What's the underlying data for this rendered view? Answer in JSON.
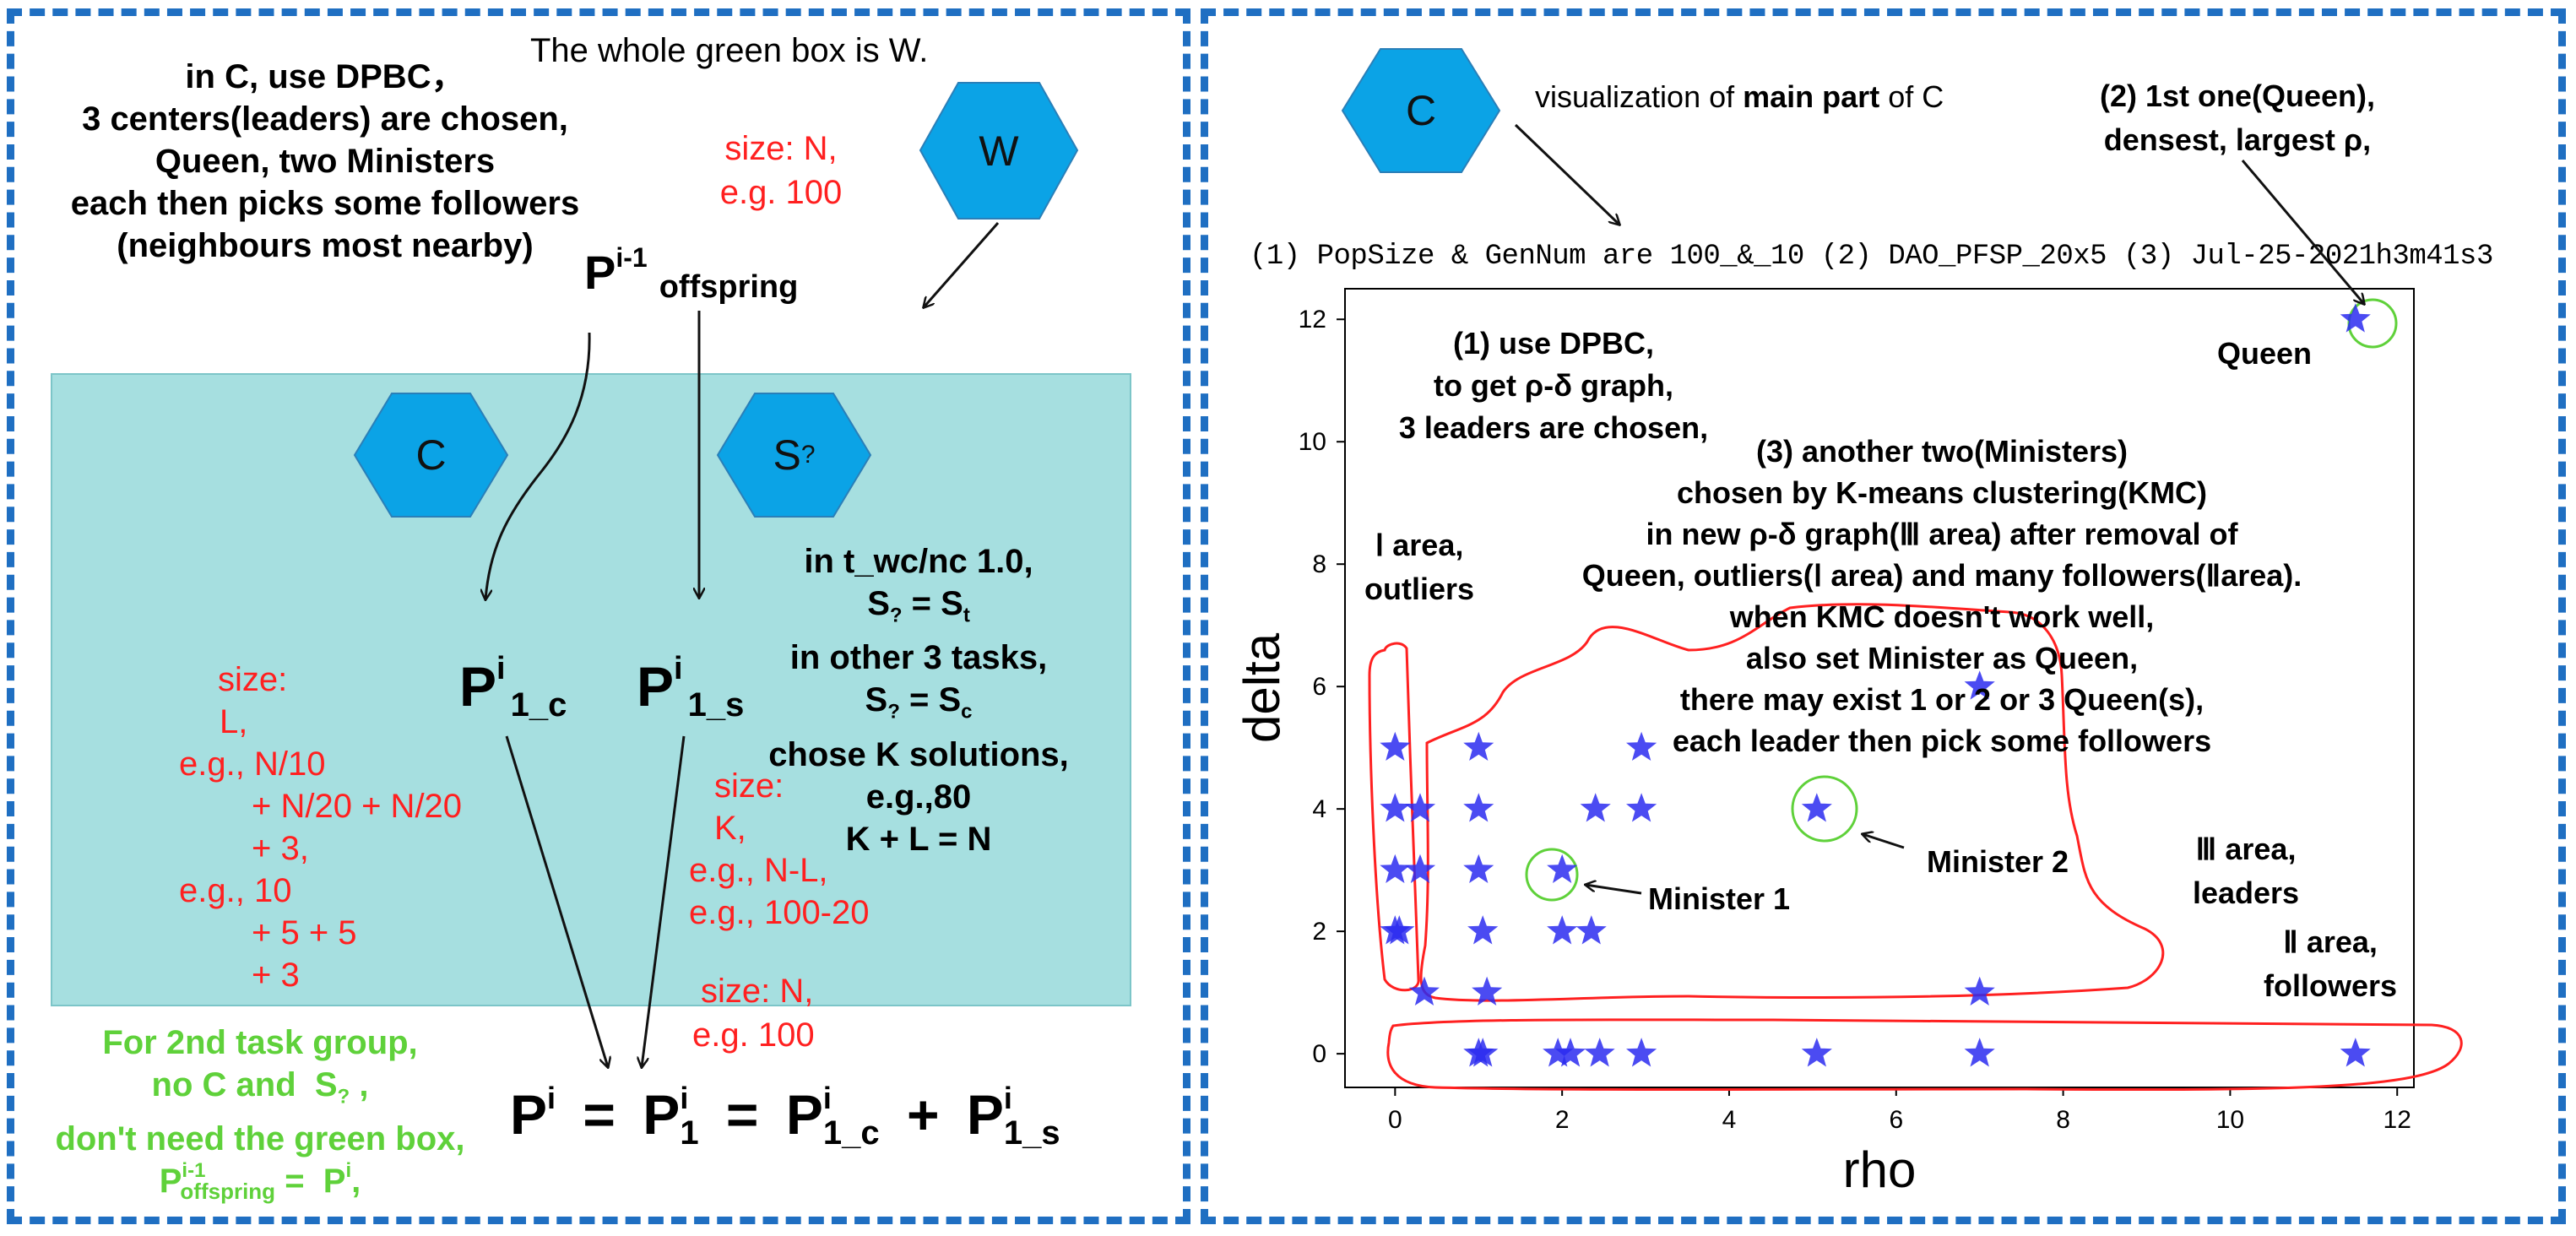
{
  "left": {
    "title_note": "The whole green box is W.",
    "dpbc_lines": [
      "in C, use DPBC，",
      "3 centers(leaders) are chosen,",
      "Queen, two Ministers",
      "each then picks some followers",
      "(neighbours most nearby)"
    ],
    "size_top": [
      "size: N,",
      "e.g. 100"
    ],
    "hex_w": "W",
    "hex_c": "C",
    "hex_s": "S",
    "hex_s_sub": "?",
    "p_prev": "P",
    "p_prev_sup": "i-1",
    "p_prev_sub": "offspring",
    "p1c": "P",
    "p1c_sup": "i",
    "p1c_sub": "1_c",
    "p1s": "P",
    "p1s_sup": "i",
    "p1s_sub": "1_s",
    "task_note": {
      "l1": "in t_wc/nc 1.0,",
      "l2_a": "S",
      "l2_b": "?",
      "l2_c": " = S",
      "l2_d": "t",
      "l3": "in other 3 tasks,",
      "l4_a": "S",
      "l4_b": "?",
      "l4_c": " = S",
      "l4_d": "c",
      "l5": "chose K solutions,",
      "l6": "e.g.,80",
      "l7": "K + L = N"
    },
    "size_l": [
      "size:",
      "L,",
      "e.g., N/10",
      "+ N/20 + N/20",
      "+ 3,",
      "e.g., 10",
      "+ 5 + 5",
      "+ 3"
    ],
    "size_k": [
      "size:",
      "K,",
      "e.g., N-L,",
      "e.g., 100-20"
    ],
    "size_n": [
      "size: N,",
      "e.g. 100"
    ],
    "green_note": {
      "l1": "For 2nd task group,",
      "l2_a": "no C and  S",
      "l2_b": "?",
      "l2_c": " ,",
      "l3": "don't need the green box,",
      "l4_a": "P",
      "l4_sup": "i-1",
      "l4_sub": "offspring",
      "l4_b": " =  P",
      "l4_sup2": "i",
      "l4_c": ","
    },
    "equation": {
      "p": "P",
      "i": "i",
      "one": "1",
      "one_c": "1_c",
      "one_s": "1_s",
      "eq": "=",
      "plus": "+"
    }
  },
  "right": {
    "hex_c": "C",
    "vis_a": "visualization of ",
    "vis_b": "main part",
    "vis_c": " of C",
    "queen_note": [
      "(2) 1st one(Queen),",
      "densest, largest ρ,"
    ],
    "plot_title": "(1) PopSize & GenNum are 100_&_10 (2) DAO_PFSP_20x5 (3) Jul-25-2021h3m41s3",
    "dpbc_note": [
      "(1) use DPBC,",
      "to get  ρ-δ   graph,",
      "3 leaders are chosen,"
    ],
    "kmc_note": [
      "(3) another two(Ministers)",
      "chosen by K-means clustering(KMC)",
      "in  new ρ-δ graph(Ⅲ area) after removal of",
      "Queen, outliers(Ⅰ area) and many followers(Ⅱarea).",
      "when KMC doesn't work well,",
      "also set Minister as Queen,",
      "there may exist  1 or 2 or 3 Queen(s),",
      "each leader then pick some followers"
    ],
    "area1": [
      "Ⅰ area,",
      "outliers"
    ],
    "area3": [
      "Ⅲ area,",
      "leaders"
    ],
    "area2": [
      "Ⅱ area,",
      "followers"
    ],
    "queen_label": "Queen",
    "minister1": "Minister 1",
    "minister2": "Minister 2"
  },
  "chart_data": {
    "type": "scatter",
    "title": "(1) PopSize & GenNum are 100_&_10 (2) DAO_PFSP_20x5 (3) Jul-25-2021h3m41s3",
    "xlabel": "rho",
    "ylabel": "delta",
    "xlim": [
      -0.6,
      12.2
    ],
    "ylim": [
      -0.55,
      12.5
    ],
    "xticks": [
      0,
      2,
      4,
      6,
      8,
      10,
      12
    ],
    "yticks": [
      0,
      2,
      4,
      6,
      8,
      10,
      12
    ],
    "marker": "star",
    "color": "#2b2bf0",
    "points": [
      {
        "x": 0,
        "y": 5
      },
      {
        "x": 0,
        "y": 4
      },
      {
        "x": 0.3,
        "y": 4
      },
      {
        "x": 0,
        "y": 3
      },
      {
        "x": 0.3,
        "y": 3
      },
      {
        "x": 0,
        "y": 2
      },
      {
        "x": 0.05,
        "y": 2
      },
      {
        "x": 0.35,
        "y": 1
      },
      {
        "x": 1,
        "y": 5
      },
      {
        "x": 1,
        "y": 4
      },
      {
        "x": 1,
        "y": 3
      },
      {
        "x": 1.05,
        "y": 2
      },
      {
        "x": 1.1,
        "y": 1
      },
      {
        "x": 1,
        "y": 0
      },
      {
        "x": 1.05,
        "y": 0
      },
      {
        "x": 2.4,
        "y": 4
      },
      {
        "x": 2.95,
        "y": 4
      },
      {
        "x": 2.95,
        "y": 5
      },
      {
        "x": 2,
        "y": 3
      },
      {
        "x": 2,
        "y": 2
      },
      {
        "x": 2.35,
        "y": 2
      },
      {
        "x": 1.95,
        "y": 0
      },
      {
        "x": 2.1,
        "y": 0
      },
      {
        "x": 2.45,
        "y": 0
      },
      {
        "x": 2.95,
        "y": 0
      },
      {
        "x": 5.05,
        "y": 4
      },
      {
        "x": 5.05,
        "y": 0
      },
      {
        "x": 7,
        "y": 6
      },
      {
        "x": 7,
        "y": 1
      },
      {
        "x": 7,
        "y": 0
      },
      {
        "x": 11.5,
        "y": 12
      },
      {
        "x": 11.5,
        "y": 0
      }
    ]
  }
}
